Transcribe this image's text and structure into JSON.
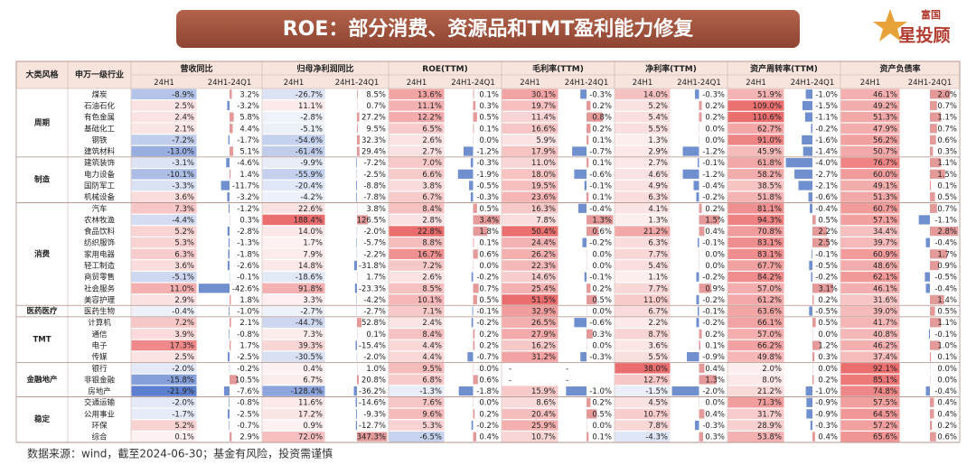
{
  "header": {
    "title": "ROE：部分消费、资源品和TMT盈利能力修复",
    "logo_top": "富国",
    "logo_bottom": "星投顾"
  },
  "table": {
    "group_headers": [
      "大类风格",
      "申万一级行业",
      "营收同比",
      "归母净利润同比",
      "ROE(TTM)",
      "毛利率(TTM)",
      "净利率(TTM)",
      "资产周转率(TTM)",
      "资产负债率"
    ],
    "sub_headers": [
      "24H1",
      "24H1-24Q1"
    ],
    "sections": [
      {
        "name": "周期",
        "rows": [
          {
            "industry": "煤炭",
            "values": [
              "-8.9%",
              "3.2%",
              "-26.7%",
              "8.5%",
              "13.6%",
              "0.1%",
              "30.1%",
              "-0.3%",
              "14.0%",
              "-0.3%",
              "51.9%",
              "-1.0%",
              "46.1%",
              "2.0%"
            ]
          },
          {
            "industry": "石油石化",
            "values": [
              "2.5%",
              "-3.2%",
              "11.1%",
              "0.7%",
              "11.1%",
              "0.3%",
              "19.7%",
              "0.2%",
              "5.2%",
              "0.2%",
              "109.0%",
              "-1.5%",
              "49.2%",
              "0.7%"
            ]
          },
          {
            "industry": "有色金属",
            "values": [
              "2.4%",
              "5.8%",
              "-2.8%",
              "27.2%",
              "12.2%",
              "0.5%",
              "11.4%",
              "0.8%",
              "5.4%",
              "0.2%",
              "110.6%",
              "-1.1%",
              "51.3%",
              "1.1%"
            ]
          },
          {
            "industry": "基础化工",
            "values": [
              "2.1%",
              "4.4%",
              "-5.1%",
              "9.5%",
              "6.5%",
              "0.1%",
              "16.6%",
              "0.2%",
              "5.5%",
              "0.0%",
              "62.7%",
              "-0.2%",
              "47.9%",
              "0.7%"
            ]
          },
          {
            "industry": "钢铁",
            "values": [
              "-7.2%",
              "-1.7%",
              "-54.6%",
              "32.3%",
              "2.6%",
              "0.0%",
              "5.9%",
              "0.1%",
              "1.3%",
              "0.0%",
              "91.0%",
              "-1.6%",
              "56.2%",
              "0.6%"
            ]
          },
          {
            "industry": "建筑材料",
            "values": [
              "-13.0%",
              "5.1%",
              "-61.4%",
              "29.4%",
              "2.7%",
              "-1.2%",
              "17.9%",
              "-0.7%",
              "2.9%",
              "-1.2%",
              "45.9%",
              "-1.4%",
              "50.7%",
              "0.3%"
            ]
          }
        ]
      },
      {
        "name": "制造",
        "rows": [
          {
            "industry": "建筑装饰",
            "values": [
              "-3.1%",
              "-4.6%",
              "-9.9%",
              "-7.2%",
              "7.0%",
              "-0.3%",
              "11.0%",
              "0.1%",
              "2.7%",
              "-0.1%",
              "61.8%",
              "-4.0%",
              "76.7%",
              "1.1%"
            ]
          },
          {
            "industry": "电力设备",
            "values": [
              "-10.1%",
              "1.4%",
              "-55.9%",
              "-2.5%",
              "6.6%",
              "-1.9%",
              "18.0%",
              "-0.6%",
              "4.6%",
              "-1.2%",
              "58.2%",
              "-2.7%",
              "60.0%",
              "1.5%"
            ]
          },
          {
            "industry": "国防军工",
            "values": [
              "-3.3%",
              "-11.7%",
              "-20.4%",
              "-8.8%",
              "3.8%",
              "-0.5%",
              "19.5%",
              "-0.1%",
              "4.9%",
              "-0.4%",
              "38.5%",
              "-2.1%",
              "49.1%",
              "0.1%"
            ]
          },
          {
            "industry": "机械设备",
            "values": [
              "3.6%",
              "-3.2%",
              "-4.2%",
              "-7.8%",
              "6.7%",
              "-0.3%",
              "23.6%",
              "0.1%",
              "6.3%",
              "-0.2%",
              "51.8%",
              "-0.6%",
              "51.3%",
              "0.5%"
            ]
          }
        ]
      },
      {
        "name": "消费",
        "rows": [
          {
            "industry": "汽车",
            "values": [
              "7.3%",
              "-1.2%",
              "22.6%",
              "3.8%",
              "8.4%",
              "0.5%",
              "16.3%",
              "-0.4%",
              "4.1%",
              "0.2%",
              "81.1%",
              "-0.4%",
              "60.7%",
              "0.7%"
            ]
          },
          {
            "industry": "农林牧渔",
            "values": [
              "-4.4%",
              "0.3%",
              "188.4%",
              "126.5%",
              "2.8%",
              "3.4%",
              "7.8%",
              "1.3%",
              "1.3%",
              "1.5%",
              "94.3%",
              "0.5%",
              "57.1%",
              "-1.1%"
            ]
          },
          {
            "industry": "食品饮料",
            "values": [
              "5.2%",
              "-2.8%",
              "14.0%",
              "-2.0%",
              "22.8%",
              "1.8%",
              "50.4%",
              "0.6%",
              "21.2%",
              "0.4%",
              "70.8%",
              "2.2%",
              "34.4%",
              "2.8%"
            ]
          },
          {
            "industry": "纺织服饰",
            "values": [
              "5.3%",
              "-1.3%",
              "1.7%",
              "-5.7%",
              "8.8%",
              "0.1%",
              "24.4%",
              "-0.2%",
              "6.3%",
              "-0.1%",
              "83.1%",
              "2.5%",
              "39.7%",
              "-0.4%"
            ]
          },
          {
            "industry": "家用电器",
            "values": [
              "6.3%",
              "-1.8%",
              "7.9%",
              "-2.2%",
              "16.7%",
              "0.6%",
              "26.2%",
              "0.0%",
              "7.7%",
              "0.0%",
              "83.1%",
              "-0.1%",
              "60.9%",
              "1.7%"
            ]
          },
          {
            "industry": "轻工制造",
            "values": [
              "3.6%",
              "-2.6%",
              "14.8%",
              "-31.8%",
              "7.2%",
              "0.0%",
              "22.3%",
              "0.0%",
              "5.4%",
              "0.0%",
              "67.7%",
              "-0.5%",
              "48.6%",
              "0.9%"
            ]
          },
          {
            "industry": "商贸零售",
            "values": [
              "-5.1%",
              "-0.1%",
              "-18.6%",
              "1.7%",
              "2.6%",
              "-0.2%",
              "14.6%",
              "-0.1%",
              "1.1%",
              "-0.2%",
              "84.2%",
              "-0.2%",
              "62.1%",
              "-0.5%"
            ]
          },
          {
            "industry": "社会服务",
            "values": [
              "11.0%",
              "-42.6%",
              "91.8%",
              "-23.3%",
              "8.5%",
              "0.7%",
              "25.4%",
              "0.2%",
              "7.7%",
              "0.9%",
              "57.0%",
              "3.1%",
              "46.1%",
              "-0.4%"
            ]
          },
          {
            "industry": "美容护理",
            "values": [
              "2.9%",
              "1.8%",
              "3.3%",
              "-4.2%",
              "10.1%",
              "0.5%",
              "51.5%",
              "0.5%",
              "11.0%",
              "-0.2%",
              "61.2%",
              "0.2%",
              "31.6%",
              "1.4%"
            ]
          }
        ]
      },
      {
        "name": "医药医疗",
        "rows": [
          {
            "industry": "医药生物",
            "values": [
              "-0.4%",
              "-1.0%",
              "-2.7%",
              "-2.7%",
              "7.1%",
              "-0.1%",
              "32.9%",
              "0.0%",
              "6.7%",
              "-0.1%",
              "63.6%",
              "-0.5%",
              "39.0%",
              "0.5%"
            ]
          }
        ]
      },
      {
        "name": "TMT",
        "rows": [
          {
            "industry": "计算机",
            "values": [
              "7.2%",
              "2.1%",
              "-44.7%",
              "52.8%",
              "2.4%",
              "-0.2%",
              "26.5%",
              "-0.6%",
              "2.2%",
              "-0.2%",
              "66.1%",
              "0.5%",
              "41.7%",
              "1.1%"
            ]
          },
          {
            "industry": "通信",
            "values": [
              "3.9%",
              "-0.8%",
              "7.3%",
              "0.1%",
              "8.4%",
              "0.2%",
              "27.9%",
              "0.3%",
              "8.7%",
              "0.2%",
              "57.0%",
              "0.0%",
              "40.8%",
              "-0.1%"
            ]
          },
          {
            "industry": "电子",
            "values": [
              "17.3%",
              "1.7%",
              "39.3%",
              "-15.4%",
              "4.4%",
              "0.2%",
              "16.2%",
              "0.0%",
              "3.6%",
              "0.1%",
              "66.2%",
              "1.2%",
              "46.2%",
              "1.0%"
            ]
          },
          {
            "industry": "传媒",
            "values": [
              "2.5%",
              "-2.5%",
              "-30.5%",
              "-2.0%",
              "4.4%",
              "-0.7%",
              "31.2%",
              "-0.3%",
              "5.5%",
              "-0.9%",
              "49.8%",
              "0.3%",
              "37.4%",
              "0.1%"
            ]
          }
        ]
      },
      {
        "name": "金融地产",
        "rows": [
          {
            "industry": "银行",
            "values": [
              "-2.0%",
              "-0.2%",
              "0.4%",
              "1.0%",
              "9.5%",
              "0.0%",
              "-",
              "-",
              "38.0%",
              "0.4%",
              "2.0%",
              "0.0%",
              "92.1%",
              "0.0%"
            ]
          },
          {
            "industry": "非银金融",
            "values": [
              "-15.8%",
              "10.5%",
              "6.7%",
              "20.8%",
              "6.8%",
              "0.6%",
              "-",
              "-",
              "12.7%",
              "1.3%",
              "8.0%",
              "0.2%",
              "85.1%",
              "0.0%"
            ]
          },
          {
            "industry": "房地产",
            "values": [
              "-21.9%",
              "-7.6%",
              "-128.4%",
              "-36.2%",
              "-1.3%",
              "-1.8%",
              "15.9%",
              "-1.0%",
              "-1.5%",
              "-2.0%",
              "21.2%",
              "-1.0%",
              "74.8%",
              "-0.4%"
            ]
          }
        ]
      },
      {
        "name": "稳定",
        "rows": [
          {
            "industry": "交通运输",
            "values": [
              "-2.0%",
              "-0.8%",
              "11.6%",
              "-14.6%",
              "7.6%",
              "0.0%",
              "8.6%",
              "0.2%",
              "4.5%",
              "0.0%",
              "71.3%",
              "-0.9%",
              "57.5%",
              "0.4%"
            ]
          },
          {
            "industry": "公用事业",
            "values": [
              "-1.7%",
              "-2.5%",
              "17.2%",
              "-9.3%",
              "9.6%",
              "0.2%",
              "20.4%",
              "0.5%",
              "10.7%",
              "0.4%",
              "31.7%",
              "-0.9%",
              "64.5%",
              "0.4%"
            ]
          },
          {
            "industry": "环保",
            "values": [
              "5.2%",
              "-0.7%",
              "0.9%",
              "-12.7%",
              "5.3%",
              "-0.2%",
              "25.9%",
              "0.0%",
              "7.8%",
              "-0.3%",
              "28.9%",
              "-0.3%",
              "57.2%",
              "0.2%"
            ]
          },
          {
            "industry": "综合",
            "values": [
              "0.1%",
              "2.9%",
              "72.0%",
              "347.3%",
              "-6.5%",
              "0.4%",
              "10.7%",
              "0.1%",
              "-4.3%",
              "0.3%",
              "53.8%",
              "0.4%",
              "65.6%",
              "0.6%"
            ]
          }
        ]
      }
    ]
  },
  "footer": "数据来源：wind，截至2024-06-30；基金有风险，投资需谨慎"
}
